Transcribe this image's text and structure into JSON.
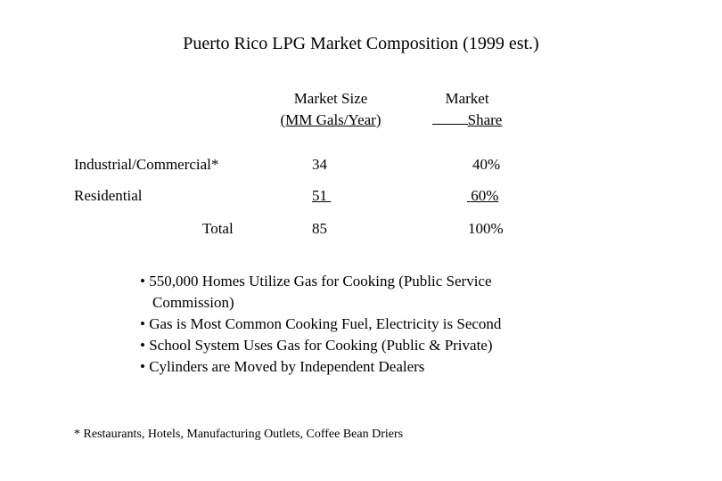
{
  "title": "Puerto Rico LPG Market Composition (1999 est.)",
  "headers": {
    "size": [
      "Market Size",
      "(MM Gals/Year)"
    ],
    "share": [
      "Market",
      "Share"
    ]
  },
  "rows": [
    {
      "label": "Industrial/Commercial*",
      "size": "34",
      "share": "40%"
    },
    {
      "label": "Residential",
      "size": "51",
      "share": "60%"
    },
    {
      "label": "Total",
      "size": "85",
      "share": "100%"
    }
  ],
  "bullets": [
    "• 550,000 Homes Utilize Gas for Cooking (Public Service",
    "Commission)",
    "• Gas is Most Common Cooking Fuel, Electricity is Second",
    "• School System Uses Gas for Cooking (Public & Private)",
    "• Cylinders are Moved by Independent Dealers"
  ],
  "footnote": "* Restaurants, Hotels, Manufacturing Outlets, Coffee Bean Driers"
}
